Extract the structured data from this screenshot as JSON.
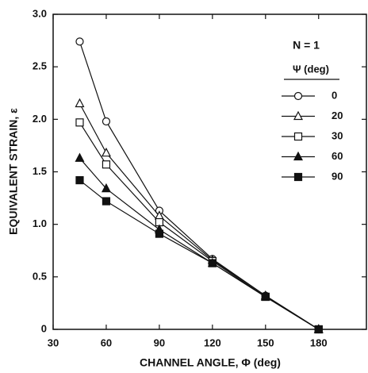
{
  "chart_data": {
    "type": "line",
    "x_label": "CHANNEL ANGLE, Φ (deg)",
    "y_label": "EQUIVALENT STRAIN, ε",
    "legend_title": "N = 1",
    "legend_subtitle": "Ψ  (deg)",
    "x": [
      45,
      60,
      90,
      120,
      150,
      180
    ],
    "series": [
      {
        "name": "0",
        "color": "#111111",
        "marker": "circle",
        "filled": false,
        "values": [
          2.74,
          1.98,
          1.13,
          0.67,
          0.32,
          0
        ]
      },
      {
        "name": "20",
        "color": "#111111",
        "marker": "triangle",
        "filled": false,
        "values": [
          2.15,
          1.68,
          1.08,
          0.66,
          0.32,
          0
        ]
      },
      {
        "name": "30",
        "color": "#111111",
        "marker": "square",
        "filled": false,
        "values": [
          1.97,
          1.57,
          1.02,
          0.65,
          0.31,
          0
        ]
      },
      {
        "name": "60",
        "color": "#111111",
        "marker": "triangle",
        "filled": true,
        "values": [
          1.63,
          1.34,
          0.95,
          0.63,
          0.31,
          0
        ]
      },
      {
        "name": "90",
        "color": "#111111",
        "marker": "square",
        "filled": true,
        "values": [
          1.42,
          1.22,
          0.91,
          0.63,
          0.31,
          0
        ]
      }
    ],
    "xlim": [
      30,
      207
    ],
    "xticks": [
      30,
      60,
      90,
      120,
      150,
      180
    ],
    "ylim": [
      0,
      3
    ],
    "yticks": [
      0,
      0.5,
      {
        "value": 1,
        "label": "1.0"
      },
      1.5,
      {
        "value": 2,
        "label": "2.0"
      },
      2.5,
      {
        "value": 3,
        "label": "3.0"
      }
    ],
    "grid": false,
    "legend": "upper right"
  }
}
